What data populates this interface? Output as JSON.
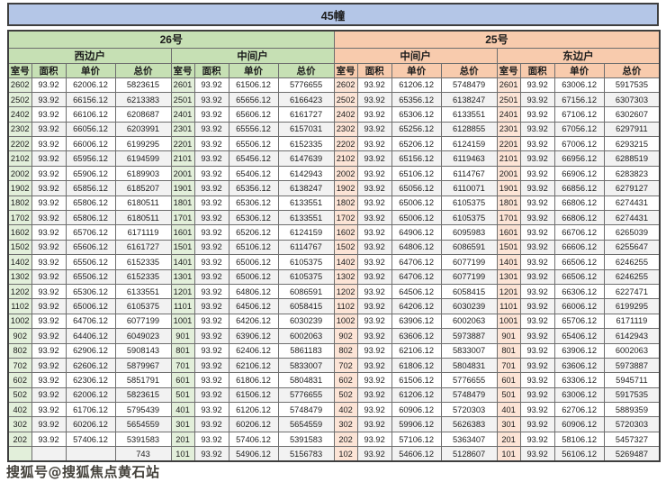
{
  "title": "45幢",
  "watermark": {
    "text": "搜狐号@搜狐焦点黄石站",
    "visible_fragment": "743"
  },
  "colors": {
    "title_bar": "#b4c6e7",
    "building26_header": "#c6e0b4",
    "building25_header": "#f8cbad",
    "room_col_26": "#e2efda",
    "room_col_25": "#fce4d6",
    "alt_row": "#f2f2f2",
    "border": "#6e6e6e"
  },
  "buildings": [
    {
      "label": "26号",
      "tone": "g"
    },
    {
      "label": "25号",
      "tone": "o"
    }
  ],
  "unit_headers": [
    {
      "label": "西边户",
      "tone": "g"
    },
    {
      "label": "中间户",
      "tone": "g"
    },
    {
      "label": "中间户",
      "tone": "o"
    },
    {
      "label": "东边户",
      "tone": "o"
    }
  ],
  "column_headers": [
    "室号",
    "面积",
    "单价",
    "总价"
  ],
  "groups": [
    {
      "building": "26号",
      "unit": "西边户",
      "tone": "g",
      "rows": [
        [
          "2602",
          "93.92",
          "62006.12",
          "5823615"
        ],
        [
          "2502",
          "93.92",
          "66156.12",
          "6213383"
        ],
        [
          "2402",
          "93.92",
          "66106.12",
          "6208687"
        ],
        [
          "2302",
          "93.92",
          "66056.12",
          "6203991"
        ],
        [
          "2202",
          "93.92",
          "66006.12",
          "6199295"
        ],
        [
          "2102",
          "93.92",
          "65956.12",
          "6194599"
        ],
        [
          "2002",
          "93.92",
          "65906.12",
          "6189903"
        ],
        [
          "1902",
          "93.92",
          "65856.12",
          "6185207"
        ],
        [
          "1802",
          "93.92",
          "65806.12",
          "6180511"
        ],
        [
          "1702",
          "93.92",
          "65806.12",
          "6180511"
        ],
        [
          "1602",
          "93.92",
          "65706.12",
          "6171119"
        ],
        [
          "1502",
          "93.92",
          "65606.12",
          "6161727"
        ],
        [
          "1402",
          "93.92",
          "65506.12",
          "6152335"
        ],
        [
          "1302",
          "93.92",
          "65506.12",
          "6152335"
        ],
        [
          "1202",
          "93.92",
          "65306.12",
          "6133551"
        ],
        [
          "1102",
          "93.92",
          "65006.12",
          "6105375"
        ],
        [
          "1002",
          "93.92",
          "64706.12",
          "6077199"
        ],
        [
          "902",
          "93.92",
          "64406.12",
          "6049023"
        ],
        [
          "802",
          "93.92",
          "62906.12",
          "5908143"
        ],
        [
          "702",
          "93.92",
          "62606.12",
          "5879967"
        ],
        [
          "602",
          "93.92",
          "62306.12",
          "5851791"
        ],
        [
          "502",
          "93.92",
          "62006.12",
          "5823615"
        ],
        [
          "402",
          "93.92",
          "61706.12",
          "5795439"
        ],
        [
          "302",
          "93.92",
          "60206.12",
          "5654559"
        ],
        [
          "202",
          "93.92",
          "57406.12",
          "5391583"
        ],
        [
          "",
          "",
          "",
          "743"
        ]
      ]
    },
    {
      "building": "26号",
      "unit": "中间户",
      "tone": "g",
      "rows": [
        [
          "2601",
          "93.92",
          "61506.12",
          "5776655"
        ],
        [
          "2501",
          "93.92",
          "65656.12",
          "6166423"
        ],
        [
          "2401",
          "93.92",
          "65606.12",
          "6161727"
        ],
        [
          "2301",
          "93.92",
          "65556.12",
          "6157031"
        ],
        [
          "2201",
          "93.92",
          "65506.12",
          "6152335"
        ],
        [
          "2101",
          "93.92",
          "65456.12",
          "6147639"
        ],
        [
          "2001",
          "93.92",
          "65406.12",
          "6142943"
        ],
        [
          "1901",
          "93.92",
          "65356.12",
          "6138247"
        ],
        [
          "1801",
          "93.92",
          "65306.12",
          "6133551"
        ],
        [
          "1701",
          "93.92",
          "65306.12",
          "6133551"
        ],
        [
          "1601",
          "93.92",
          "65206.12",
          "6124159"
        ],
        [
          "1501",
          "93.92",
          "65106.12",
          "6114767"
        ],
        [
          "1401",
          "93.92",
          "65006.12",
          "6105375"
        ],
        [
          "1301",
          "93.92",
          "65006.12",
          "6105375"
        ],
        [
          "1201",
          "93.92",
          "64806.12",
          "6086591"
        ],
        [
          "1101",
          "93.92",
          "64506.12",
          "6058415"
        ],
        [
          "1001",
          "93.92",
          "64206.12",
          "6030239"
        ],
        [
          "901",
          "93.92",
          "63906.12",
          "6002063"
        ],
        [
          "801",
          "93.92",
          "62406.12",
          "5861183"
        ],
        [
          "701",
          "93.92",
          "62106.12",
          "5833007"
        ],
        [
          "601",
          "93.92",
          "61806.12",
          "5804831"
        ],
        [
          "501",
          "93.92",
          "61506.12",
          "5776655"
        ],
        [
          "401",
          "93.92",
          "61206.12",
          "5748479"
        ],
        [
          "301",
          "93.92",
          "60206.12",
          "5654559"
        ],
        [
          "201",
          "93.92",
          "57406.12",
          "5391583"
        ],
        [
          "101",
          "93.92",
          "54906.12",
          "5156783"
        ]
      ]
    },
    {
      "building": "25号",
      "unit": "中间户",
      "tone": "o",
      "rows": [
        [
          "2602",
          "93.92",
          "61206.12",
          "5748479"
        ],
        [
          "2502",
          "93.92",
          "65356.12",
          "6138247"
        ],
        [
          "2402",
          "93.92",
          "65306.12",
          "6133551"
        ],
        [
          "2302",
          "93.92",
          "65256.12",
          "6128855"
        ],
        [
          "2202",
          "93.92",
          "65206.12",
          "6124159"
        ],
        [
          "2102",
          "93.92",
          "65156.12",
          "6119463"
        ],
        [
          "2002",
          "93.92",
          "65106.12",
          "6114767"
        ],
        [
          "1902",
          "93.92",
          "65056.12",
          "6110071"
        ],
        [
          "1802",
          "93.92",
          "65006.12",
          "6105375"
        ],
        [
          "1702",
          "93.92",
          "65006.12",
          "6105375"
        ],
        [
          "1602",
          "93.92",
          "64906.12",
          "6095983"
        ],
        [
          "1502",
          "93.92",
          "64806.12",
          "6086591"
        ],
        [
          "1402",
          "93.92",
          "64706.12",
          "6077199"
        ],
        [
          "1302",
          "93.92",
          "64706.12",
          "6077199"
        ],
        [
          "1202",
          "93.92",
          "64506.12",
          "6058415"
        ],
        [
          "1102",
          "93.92",
          "64206.12",
          "6030239"
        ],
        [
          "1002",
          "93.92",
          "63906.12",
          "6002063"
        ],
        [
          "902",
          "93.92",
          "63606.12",
          "5973887"
        ],
        [
          "802",
          "93.92",
          "62106.12",
          "5833007"
        ],
        [
          "702",
          "93.92",
          "61806.12",
          "5804831"
        ],
        [
          "602",
          "93.92",
          "61506.12",
          "5776655"
        ],
        [
          "502",
          "93.92",
          "61206.12",
          "5748479"
        ],
        [
          "402",
          "93.92",
          "60906.12",
          "5720303"
        ],
        [
          "302",
          "93.92",
          "59906.12",
          "5626383"
        ],
        [
          "202",
          "93.92",
          "57106.12",
          "5363407"
        ],
        [
          "102",
          "93.92",
          "54606.12",
          "5128607"
        ]
      ]
    },
    {
      "building": "25号",
      "unit": "东边户",
      "tone": "o",
      "rows": [
        [
          "2601",
          "93.92",
          "63006.12",
          "5917535"
        ],
        [
          "2501",
          "93.92",
          "67156.12",
          "6307303"
        ],
        [
          "2401",
          "93.92",
          "67106.12",
          "6302607"
        ],
        [
          "2301",
          "93.92",
          "67056.12",
          "6297911"
        ],
        [
          "2201",
          "93.92",
          "67006.12",
          "6293215"
        ],
        [
          "2101",
          "93.92",
          "66956.12",
          "6288519"
        ],
        [
          "2001",
          "93.92",
          "66906.12",
          "6283823"
        ],
        [
          "1901",
          "93.92",
          "66856.12",
          "6279127"
        ],
        [
          "1801",
          "93.92",
          "66806.12",
          "6274431"
        ],
        [
          "1701",
          "93.92",
          "66806.12",
          "6274431"
        ],
        [
          "1601",
          "93.92",
          "66706.12",
          "6265039"
        ],
        [
          "1501",
          "93.92",
          "66606.12",
          "6255647"
        ],
        [
          "1401",
          "93.92",
          "66506.12",
          "6246255"
        ],
        [
          "1301",
          "93.92",
          "66506.12",
          "6246255"
        ],
        [
          "1201",
          "93.92",
          "66306.12",
          "6227471"
        ],
        [
          "1101",
          "93.92",
          "66006.12",
          "6199295"
        ],
        [
          "1001",
          "93.92",
          "65706.12",
          "6171119"
        ],
        [
          "901",
          "93.92",
          "65406.12",
          "6142943"
        ],
        [
          "801",
          "93.92",
          "63906.12",
          "6002063"
        ],
        [
          "701",
          "93.92",
          "63606.12",
          "5973887"
        ],
        [
          "601",
          "93.92",
          "63306.12",
          "5945711"
        ],
        [
          "501",
          "93.92",
          "63006.12",
          "5917535"
        ],
        [
          "401",
          "93.92",
          "62706.12",
          "5889359"
        ],
        [
          "301",
          "93.92",
          "60906.12",
          "5720303"
        ],
        [
          "201",
          "93.92",
          "58106.12",
          "5457327"
        ],
        [
          "101",
          "93.92",
          "56106.12",
          "5269487"
        ]
      ]
    }
  ]
}
